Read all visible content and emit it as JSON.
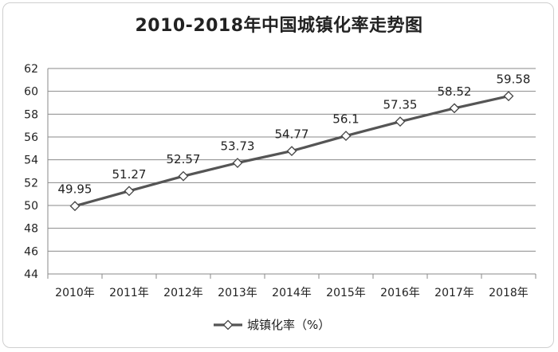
{
  "chart_data": {
    "type": "line",
    "title": "2010-2018年中国城镇化率走势图",
    "categories": [
      "2010年",
      "2011年",
      "2012年",
      "2013年",
      "2014年",
      "2015年",
      "2016年",
      "2017年",
      "2018年"
    ],
    "series": [
      {
        "name": "城镇化率（%）",
        "values": [
          49.95,
          51.27,
          52.57,
          53.73,
          54.77,
          56.1,
          57.35,
          58.52,
          59.58
        ],
        "labels": [
          "49.95",
          "51.27",
          "52.57",
          "53.73",
          "54.77",
          "56.1",
          "57.35",
          "58.52",
          "59.58"
        ],
        "color": "#555555",
        "marker": "diamond"
      }
    ],
    "ylim": [
      44,
      62
    ],
    "yticks": [
      "44",
      "46",
      "48",
      "50",
      "52",
      "54",
      "56",
      "58",
      "60",
      "62"
    ],
    "grid": true,
    "legend": "bottom"
  }
}
